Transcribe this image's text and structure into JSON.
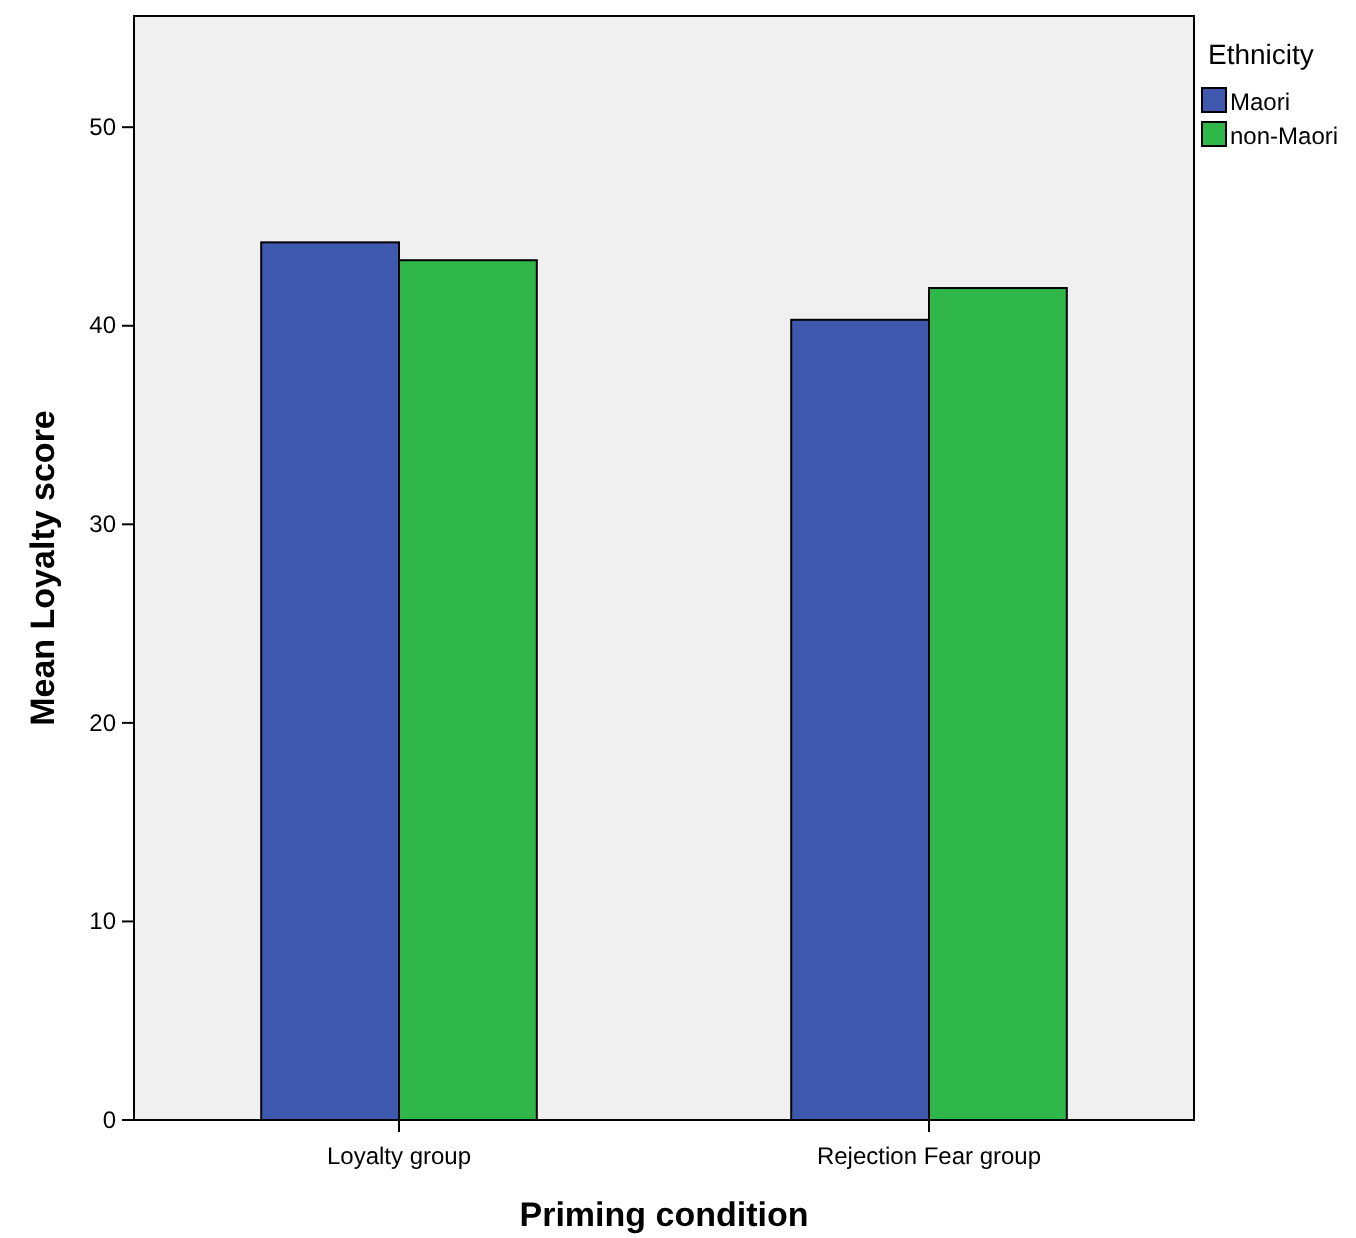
{
  "chart_data": {
    "type": "bar",
    "xlabel": "Priming condition",
    "ylabel": "Mean Loyalty score",
    "legend_title": "Ethnicity",
    "categories": [
      "Loyalty group",
      "Rejection Fear group"
    ],
    "series": [
      {
        "name": "Maori",
        "color": "#3e58ad",
        "values": [
          44.2,
          40.3
        ]
      },
      {
        "name": "non-Maori",
        "color": "#30b74a",
        "values": [
          43.3,
          41.9
        ]
      }
    ],
    "ylim": [
      0,
      55.6
    ],
    "yticks": [
      0,
      10,
      20,
      30,
      40,
      50
    ],
    "grid": false,
    "legend": "top right"
  }
}
